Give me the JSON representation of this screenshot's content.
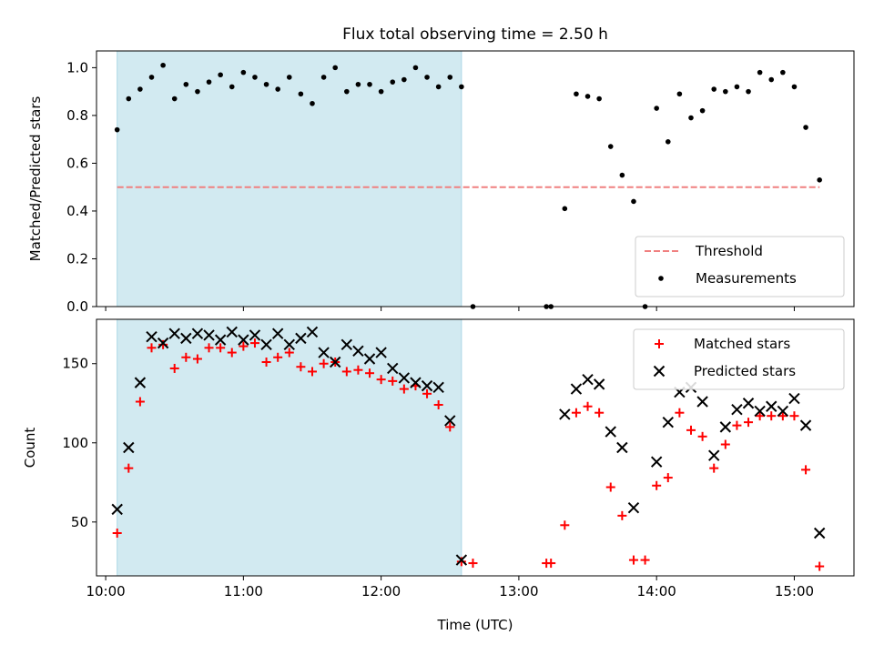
{
  "title": "Flux total observing time = 2.50 h",
  "colors": {
    "shade": "#add8e6",
    "threshold": "#f08080",
    "matched": "#ff0000",
    "predicted": "#000000",
    "measurement": "#000000"
  },
  "chart_data": [
    {
      "type": "scatter",
      "ylabel": "Matched/Predicted stars",
      "xlabel": "",
      "xlim": [
        "09:56",
        "15:26"
      ],
      "ylim": [
        0.0,
        1.07
      ],
      "x_ticks": [
        "10:00",
        "11:00",
        "12:00",
        "13:00",
        "14:00",
        "15:00"
      ],
      "y_ticks": [
        "0.0",
        "0.2",
        "0.4",
        "0.6",
        "0.8",
        "1.0"
      ],
      "shaded_interval": [
        "10:05",
        "12:35"
      ],
      "threshold": {
        "name": "Threshold",
        "value": 0.5,
        "x_range": [
          "10:05",
          "15:11"
        ]
      },
      "legend_position": "lower-right",
      "series": [
        {
          "name": "Measurements",
          "points": [
            [
              "10:05",
              0.74
            ],
            [
              "10:10",
              0.87
            ],
            [
              "10:15",
              0.91
            ],
            [
              "10:20",
              0.96
            ],
            [
              "10:25",
              1.01
            ],
            [
              "10:30",
              0.87
            ],
            [
              "10:35",
              0.93
            ],
            [
              "10:40",
              0.9
            ],
            [
              "10:45",
              0.94
            ],
            [
              "10:50",
              0.97
            ],
            [
              "10:55",
              0.92
            ],
            [
              "11:00",
              0.98
            ],
            [
              "11:05",
              0.96
            ],
            [
              "11:10",
              0.93
            ],
            [
              "11:15",
              0.91
            ],
            [
              "11:20",
              0.96
            ],
            [
              "11:25",
              0.89
            ],
            [
              "11:30",
              0.85
            ],
            [
              "11:35",
              0.96
            ],
            [
              "11:40",
              1.0
            ],
            [
              "11:45",
              0.9
            ],
            [
              "11:50",
              0.93
            ],
            [
              "11:55",
              0.93
            ],
            [
              "12:00",
              0.9
            ],
            [
              "12:05",
              0.94
            ],
            [
              "12:10",
              0.95
            ],
            [
              "12:15",
              1.0
            ],
            [
              "12:20",
              0.96
            ],
            [
              "12:25",
              0.92
            ],
            [
              "12:30",
              0.96
            ],
            [
              "12:35",
              0.92
            ],
            [
              "12:40",
              0.0
            ],
            [
              "13:12",
              0.0
            ],
            [
              "13:14",
              0.0
            ],
            [
              "13:20",
              0.41
            ],
            [
              "13:25",
              0.89
            ],
            [
              "13:30",
              0.88
            ],
            [
              "13:35",
              0.87
            ],
            [
              "13:40",
              0.67
            ],
            [
              "13:45",
              0.55
            ],
            [
              "13:50",
              0.44
            ],
            [
              "13:55",
              0.0
            ],
            [
              "14:00",
              0.83
            ],
            [
              "14:05",
              0.69
            ],
            [
              "14:10",
              0.89
            ],
            [
              "14:15",
              0.79
            ],
            [
              "14:20",
              0.82
            ],
            [
              "14:25",
              0.91
            ],
            [
              "14:30",
              0.9
            ],
            [
              "14:35",
              0.92
            ],
            [
              "14:40",
              0.9
            ],
            [
              "14:45",
              0.98
            ],
            [
              "14:50",
              0.95
            ],
            [
              "14:55",
              0.98
            ],
            [
              "15:00",
              0.92
            ],
            [
              "15:05",
              0.75
            ],
            [
              "15:11",
              0.53
            ]
          ]
        }
      ]
    },
    {
      "type": "scatter",
      "ylabel": "Count",
      "xlabel": "Time (UTC)",
      "xlim": [
        "09:56",
        "15:26"
      ],
      "ylim": [
        16,
        178
      ],
      "x_ticks": [
        "10:00",
        "11:00",
        "12:00",
        "13:00",
        "14:00",
        "15:00"
      ],
      "y_ticks": [
        "50",
        "100",
        "150"
      ],
      "shaded_interval": [
        "10:05",
        "12:35"
      ],
      "legend_position": "upper-right",
      "series": [
        {
          "name": "Matched stars",
          "marker": "plus",
          "points": [
            [
              "10:05",
              43
            ],
            [
              "10:10",
              84
            ],
            [
              "10:15",
              126
            ],
            [
              "10:20",
              160
            ],
            [
              "10:25",
              162
            ],
            [
              "10:30",
              147
            ],
            [
              "10:35",
              154
            ],
            [
              "10:40",
              153
            ],
            [
              "10:45",
              160
            ],
            [
              "10:50",
              160
            ],
            [
              "10:55",
              157
            ],
            [
              "11:00",
              161
            ],
            [
              "11:05",
              163
            ],
            [
              "11:10",
              151
            ],
            [
              "11:15",
              154
            ],
            [
              "11:20",
              157
            ],
            [
              "11:25",
              148
            ],
            [
              "11:30",
              145
            ],
            [
              "11:35",
              150
            ],
            [
              "11:40",
              151
            ],
            [
              "11:45",
              145
            ],
            [
              "11:50",
              146
            ],
            [
              "11:55",
              144
            ],
            [
              "12:00",
              140
            ],
            [
              "12:05",
              139
            ],
            [
              "12:10",
              134
            ],
            [
              "12:15",
              136
            ],
            [
              "12:20",
              131
            ],
            [
              "12:25",
              124
            ],
            [
              "12:30",
              110
            ],
            [
              "12:35",
              25
            ],
            [
              "12:40",
              24
            ],
            [
              "13:12",
              24
            ],
            [
              "13:14",
              24
            ],
            [
              "13:20",
              48
            ],
            [
              "13:25",
              119
            ],
            [
              "13:30",
              123
            ],
            [
              "13:35",
              119
            ],
            [
              "13:40",
              72
            ],
            [
              "13:45",
              54
            ],
            [
              "13:50",
              26
            ],
            [
              "13:55",
              26
            ],
            [
              "14:00",
              73
            ],
            [
              "14:05",
              78
            ],
            [
              "14:10",
              119
            ],
            [
              "14:15",
              108
            ],
            [
              "14:20",
              104
            ],
            [
              "14:25",
              84
            ],
            [
              "14:30",
              99
            ],
            [
              "14:35",
              111
            ],
            [
              "14:40",
              113
            ],
            [
              "14:45",
              117
            ],
            [
              "14:50",
              117
            ],
            [
              "14:55",
              117
            ],
            [
              "15:00",
              117
            ],
            [
              "15:05",
              83
            ],
            [
              "15:11",
              22
            ]
          ]
        },
        {
          "name": "Predicted stars",
          "marker": "x",
          "points": [
            [
              "10:05",
              58
            ],
            [
              "10:10",
              97
            ],
            [
              "10:15",
              138
            ],
            [
              "10:20",
              167
            ],
            [
              "10:25",
              163
            ],
            [
              "10:30",
              169
            ],
            [
              "10:35",
              166
            ],
            [
              "10:40",
              169
            ],
            [
              "10:45",
              168
            ],
            [
              "10:50",
              165
            ],
            [
              "10:55",
              170
            ],
            [
              "11:00",
              165
            ],
            [
              "11:05",
              168
            ],
            [
              "11:10",
              162
            ],
            [
              "11:15",
              169
            ],
            [
              "11:20",
              162
            ],
            [
              "11:25",
              166
            ],
            [
              "11:30",
              170
            ],
            [
              "11:35",
              157
            ],
            [
              "11:40",
              151
            ],
            [
              "11:45",
              162
            ],
            [
              "11:50",
              158
            ],
            [
              "11:55",
              153
            ],
            [
              "12:00",
              157
            ],
            [
              "12:05",
              147
            ],
            [
              "12:10",
              141
            ],
            [
              "12:15",
              138
            ],
            [
              "12:20",
              136
            ],
            [
              "12:25",
              135
            ],
            [
              "12:30",
              114
            ],
            [
              "12:35",
              26
            ],
            [
              "13:20",
              118
            ],
            [
              "13:25",
              134
            ],
            [
              "13:30",
              140
            ],
            [
              "13:35",
              137
            ],
            [
              "13:40",
              107
            ],
            [
              "13:45",
              97
            ],
            [
              "13:50",
              59
            ],
            [
              "14:00",
              88
            ],
            [
              "14:05",
              113
            ],
            [
              "14:10",
              132
            ],
            [
              "14:15",
              135
            ],
            [
              "14:20",
              126
            ],
            [
              "14:25",
              92
            ],
            [
              "14:30",
              110
            ],
            [
              "14:35",
              121
            ],
            [
              "14:40",
              125
            ],
            [
              "14:45",
              120
            ],
            [
              "14:50",
              123
            ],
            [
              "14:55",
              120
            ],
            [
              "15:00",
              128
            ],
            [
              "15:05",
              111
            ],
            [
              "15:11",
              43
            ]
          ]
        }
      ]
    }
  ]
}
